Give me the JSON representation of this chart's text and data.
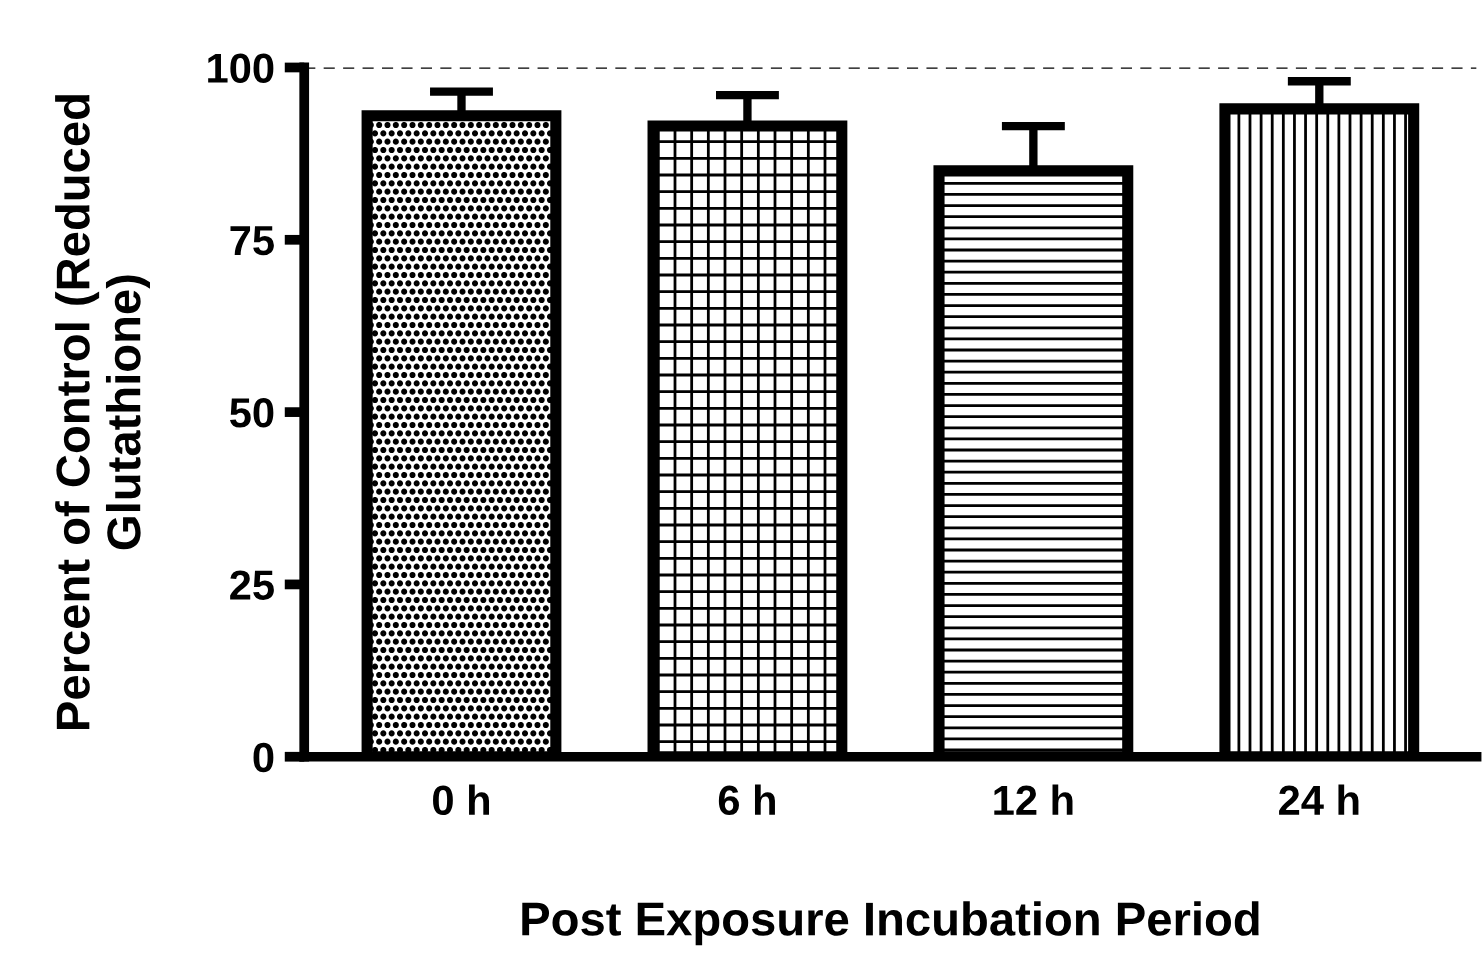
{
  "chart_data": {
    "type": "bar",
    "xlabel": "Post Exposure Incubation Period",
    "ylabel": "Percent of Control (Reduced\nGlutathione)",
    "categories": [
      "0 h",
      "6 h",
      "12 h",
      "24 h"
    ],
    "values": [
      93,
      91.5,
      85,
      94
    ],
    "errors": [
      [
        93,
        96.5
      ],
      [
        91.5,
        96
      ],
      [
        85,
        91.5
      ],
      [
        94,
        98
      ]
    ],
    "color": "#000000",
    "ylim": [
      0,
      100
    ],
    "yticks": [
      0,
      25,
      50,
      75,
      100
    ],
    "ref_lines": [
      {
        "axis": "y",
        "value": 100,
        "line_style": "dashed",
        "color": "#000000"
      }
    ],
    "grid": false,
    "legend": false
  }
}
